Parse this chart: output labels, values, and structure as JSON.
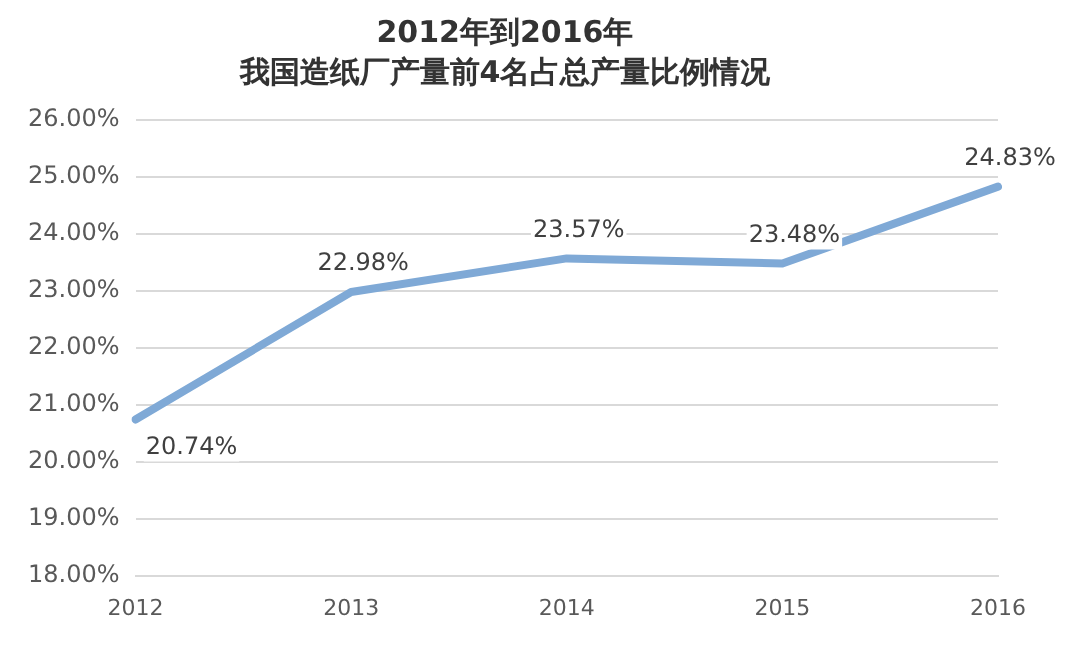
{
  "chart_data": {
    "type": "line",
    "title": "2012年到2016年",
    "subtitle": "我国造纸厂产量前4名占总产量比例情况",
    "categories": [
      "2012",
      "2013",
      "2014",
      "2015",
      "2016"
    ],
    "series": [
      {
        "color": "#7fa9d6",
        "values": [
          20.74,
          22.98,
          23.57,
          23.48,
          24.83
        ],
        "value_labels": [
          "20.74%",
          "22.98%",
          "23.57%",
          "23.48%",
          "24.83%"
        ]
      }
    ],
    "ylim": [
      18,
      26
    ],
    "yticks": [
      {
        "value": 18,
        "label": "18.00%"
      },
      {
        "value": 19,
        "label": "19.00%"
      },
      {
        "value": 20,
        "label": "20.00%"
      },
      {
        "value": 21,
        "label": "21.00%"
      },
      {
        "value": 22,
        "label": "22.00%"
      },
      {
        "value": 23,
        "label": "23.00%"
      },
      {
        "value": 24,
        "label": "24.00%"
      },
      {
        "value": 25,
        "label": "25.00%"
      },
      {
        "value": 26,
        "label": "26.00%"
      }
    ],
    "grid": "y",
    "legend": false,
    "marker": "none",
    "line_style": "solid"
  }
}
